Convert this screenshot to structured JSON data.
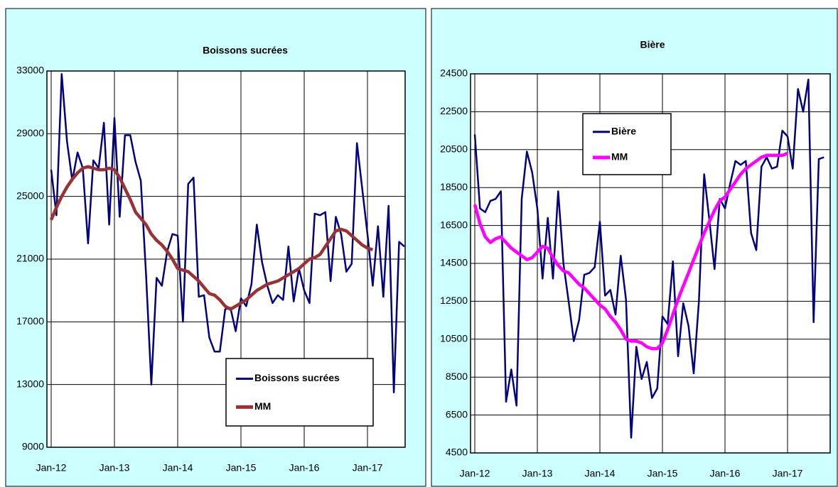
{
  "chart_data": [
    {
      "type": "line",
      "title": "Boissons sucrées",
      "categories": [
        "Jan-12",
        null,
        null,
        null,
        null,
        null,
        null,
        null,
        null,
        null,
        null,
        null,
        "Jan-13",
        null,
        null,
        null,
        null,
        null,
        null,
        null,
        null,
        null,
        null,
        null,
        "Jan-14",
        null,
        null,
        null,
        null,
        null,
        null,
        null,
        null,
        null,
        null,
        null,
        "Jan-15",
        null,
        null,
        null,
        null,
        null,
        null,
        null,
        null,
        null,
        null,
        null,
        "Jan-16",
        null,
        null,
        null,
        null,
        null,
        null,
        null,
        null,
        null,
        null,
        null,
        "Jan-17",
        null,
        null,
        null,
        null,
        null,
        null,
        null
      ],
      "series": [
        {
          "name": "Boissons sucrées",
          "color": "#000080",
          "values": [
            26700,
            23800,
            32800,
            28500,
            26000,
            27800,
            26800,
            22000,
            27300,
            26800,
            29700,
            23200,
            30000,
            23700,
            28900,
            28900,
            27200,
            26000,
            20000,
            13000,
            19800,
            19300,
            21500,
            22600,
            22500,
            17000,
            25800,
            26200,
            18600,
            18700,
            16000,
            15100,
            15100,
            17800,
            17900,
            16400,
            18500,
            18000,
            19400,
            23200,
            20800,
            19300,
            18200,
            18700,
            18400,
            21800,
            18300,
            20400,
            19000,
            18200,
            23900,
            23800,
            24000,
            19600,
            23700,
            22600,
            20200,
            20700,
            28400,
            25500,
            22600,
            19300,
            23100,
            18600,
            24400,
            12500,
            22100,
            21800
          ]
        },
        {
          "name": "MM",
          "color": "#993333",
          "values": [
            23500,
            24300,
            25000,
            25600,
            26100,
            26500,
            26800,
            26900,
            26800,
            26700,
            26700,
            26800,
            26700,
            26200,
            25500,
            24800,
            24000,
            23600,
            23200,
            22600,
            22200,
            21900,
            21500,
            21000,
            20400,
            20300,
            20200,
            19900,
            19600,
            19200,
            18800,
            18700,
            18400,
            18000,
            17800,
            18000,
            18200,
            18400,
            18700,
            19000,
            19200,
            19400,
            19500,
            19600,
            19800,
            20000,
            20200,
            20400,
            20700,
            21000,
            21100,
            21300,
            21800,
            22300,
            22800,
            22900,
            22800,
            22500,
            22200,
            21900,
            21700,
            21600,
            null,
            null,
            null,
            null,
            null,
            null
          ]
        }
      ],
      "ylim": [
        9000,
        33000
      ],
      "yticks": [
        9000,
        13000,
        17000,
        21000,
        25000,
        29000,
        33000
      ],
      "grid": true,
      "legend": "lower right"
    },
    {
      "type": "line",
      "title": "Bière",
      "categories": [
        "Jan-12",
        null,
        null,
        null,
        null,
        null,
        null,
        null,
        null,
        null,
        null,
        null,
        "Jan-13",
        null,
        null,
        null,
        null,
        null,
        null,
        null,
        null,
        null,
        null,
        null,
        "Jan-14",
        null,
        null,
        null,
        null,
        null,
        null,
        null,
        null,
        null,
        null,
        null,
        "Jan-15",
        null,
        null,
        null,
        null,
        null,
        null,
        null,
        null,
        null,
        null,
        null,
        "Jan-16",
        null,
        null,
        null,
        null,
        null,
        null,
        null,
        null,
        null,
        null,
        null,
        "Jan-17",
        null,
        null,
        null,
        null,
        null,
        null,
        null
      ],
      "series": [
        {
          "name": "Bière",
          "color": "#000080",
          "values": [
            21300,
            17400,
            17200,
            17800,
            17900,
            18300,
            7200,
            8900,
            7000,
            17900,
            20400,
            19300,
            17400,
            13700,
            16900,
            13700,
            18300,
            14500,
            12500,
            10400,
            11500,
            13900,
            14000,
            14300,
            16700,
            12800,
            13100,
            11800,
            14900,
            12600,
            5300,
            10100,
            8400,
            9300,
            7400,
            7900,
            11700,
            11300,
            14600,
            9600,
            12400,
            11200,
            8700,
            12500,
            19200,
            16800,
            14200,
            17900,
            17400,
            18700,
            19900,
            19700,
            19900,
            16100,
            15200,
            19600,
            20100,
            19500,
            19600,
            21500,
            21200,
            19500,
            23700,
            22500,
            24200,
            11400,
            20000,
            20100
          ]
        },
        {
          "name": "MM",
          "color": "#ff00ff",
          "values": [
            17600,
            16600,
            15900,
            15600,
            15800,
            15900,
            15600,
            15300,
            15100,
            14900,
            14700,
            14800,
            15100,
            15400,
            15300,
            14800,
            14400,
            14100,
            14000,
            13700,
            13400,
            13200,
            12900,
            12600,
            12300,
            12100,
            11700,
            11400,
            11000,
            10500,
            10400,
            10400,
            10300,
            10100,
            10000,
            10000,
            10300,
            11000,
            11800,
            12600,
            13300,
            14000,
            14700,
            15400,
            16100,
            16700,
            17300,
            17800,
            18000,
            18400,
            18800,
            19200,
            19500,
            19700,
            19900,
            20100,
            20200,
            20200,
            20200,
            20200,
            20300,
            null,
            null,
            null,
            null,
            null,
            null,
            null
          ]
        }
      ],
      "ylim": [
        4500,
        24500
      ],
      "yticks": [
        4500,
        6500,
        8500,
        10500,
        12500,
        14500,
        16500,
        18500,
        20500,
        22500,
        24500
      ],
      "grid": true,
      "legend": "upper left"
    }
  ]
}
